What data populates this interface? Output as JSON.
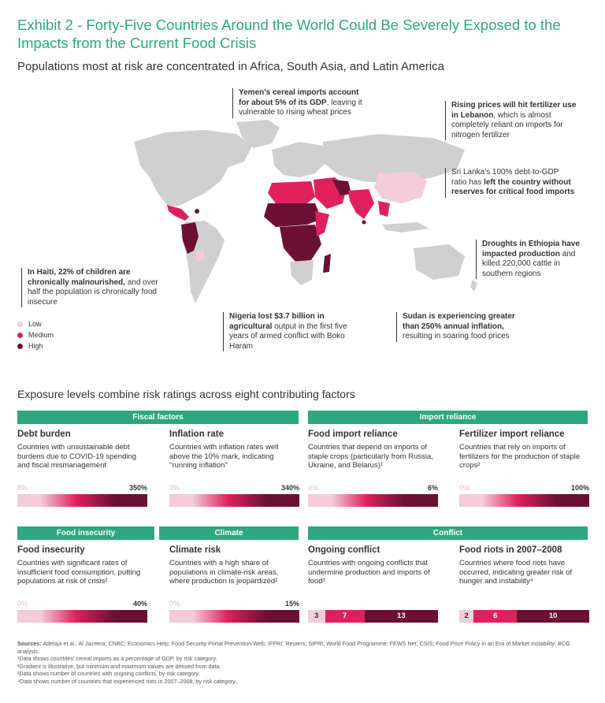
{
  "header": {
    "title": "Exhibit 2 - Forty-Five Countries Around the World Could Be Severely Exposed to the Impacts from the Current Food Crisis",
    "subtitle": "Populations most at risk are concentrated in Africa, South Asia, and Latin America"
  },
  "callouts": {
    "yemen": {
      "bold": "Yemen's cereal imports account for about 5% of its GDP",
      "rest": ", leaving it vulnerable to rising wheat prices"
    },
    "lebanon": {
      "bold": "Rising prices will hit fertilizer use in Lebanon",
      "rest": ", which is almost completely reliant on imports for nitrogen fertilizer"
    },
    "srilanka": {
      "pre": "Sri Lanka's 100% debt-to-GDP ratio has ",
      "bold": "left the country without reserves for critical food imports"
    },
    "ethiopia": {
      "bold": "Droughts in Ethiopia have impacted production",
      "rest": " and killed 220,000 cattle in southern regions"
    },
    "haiti": {
      "bold": "In Haiti, 22% of children are chronically malnourished,",
      "rest": " and over half the population is chronically food insecure"
    },
    "nigeria": {
      "bold": "Nigeria lost $3.7 billion in agricultural",
      "rest": " output in the first five years of armed conflict with Boko Haram"
    },
    "sudan": {
      "bold": "Sudan is experiencing greater than 250% annual inflation,",
      "rest": " resulting in soaring food prices"
    }
  },
  "legend": {
    "items": [
      {
        "label": "Low",
        "color": "#f2ccd8"
      },
      {
        "label": "Medium",
        "color": "#e0205e"
      },
      {
        "label": "High",
        "color": "#6b0f33"
      }
    ]
  },
  "section_title": "Exposure levels combine risk ratings across eight contributing factors",
  "bands": {
    "fiscal": "Fiscal factors",
    "import": "Import reliance",
    "food": "Food insecurity",
    "climate": "Climate",
    "conflict": "Conflict"
  },
  "cards": {
    "debt": {
      "title": "Debt burden",
      "desc": "Countries with unsustainable debt burdens due to COVID-19 spending and fiscal mismanagement",
      "min": "8%",
      "max": "350%"
    },
    "inflation": {
      "title": "Inflation rate",
      "desc": "Countries with inflation rates well above the 10% mark, indicating \"running inflation\"",
      "min": "0%",
      "max": "340%"
    },
    "food_import": {
      "title": "Food import reliance",
      "desc": "Countries that depend on imports of staple crops (particularly from Russia, Ukraine, and Belarus)¹",
      "min": "0%",
      "max": "6%"
    },
    "fertilizer": {
      "title": "Fertilizer import reliance",
      "desc": "Countries that rely on imports of fertilizers for the production of staple crops²",
      "min": "0%",
      "max": "100%"
    },
    "food_insecurity": {
      "title": "Food insecurity",
      "desc": "Countries with significant rates of insufficient food consumption, putting populations at risk of crisis²",
      "min": "0%",
      "max": "40%"
    },
    "climate_risk": {
      "title": "Climate risk",
      "desc": "Countries with a high share of populations in climate-risk areas, where production is jeopardized²",
      "min": "0%",
      "max": "15%"
    },
    "conflict": {
      "title": "Ongoing conflict",
      "desc": "Countries with ongoing conflicts that undermine production and imports of food³"
    },
    "riots": {
      "title": "Food riots in 2007–2008",
      "desc": "Countries where food riots have occurred, indicating greater risk of hunger and instability⁴"
    }
  },
  "chart_data": [
    {
      "type": "bar",
      "title": "Ongoing conflict",
      "categories": [
        "Low",
        "Medium",
        "High"
      ],
      "values": [
        3,
        7,
        13
      ],
      "stacked": true
    },
    {
      "type": "bar",
      "title": "Food riots in 2007–2008",
      "categories": [
        "Low",
        "Medium",
        "High"
      ],
      "values": [
        2,
        6,
        10
      ],
      "stacked": true
    }
  ],
  "sources": {
    "label": "Sources:",
    "text": " Adelaja et al.; Al Jazeera; CNBC; Economics Help; Food Security Portal Prevention Web; IFPRI; Reuters; SIPRI; World Food Programme; FEWS Net; CSIS; Food Price Policy in an Era of Market Instability; BCG analysis.",
    "notes": [
      "¹Data shows countries' cereal imports as a percentage of GDP, by risk category.",
      "²Gradient is illustrative, but minimum and maximum values are derived from data.",
      "³Data shows number of countries with ongoing conflicts, by risk category.",
      "⁴Data shows number of countries that experienced riots in 2007–2008, by risk category."
    ]
  }
}
